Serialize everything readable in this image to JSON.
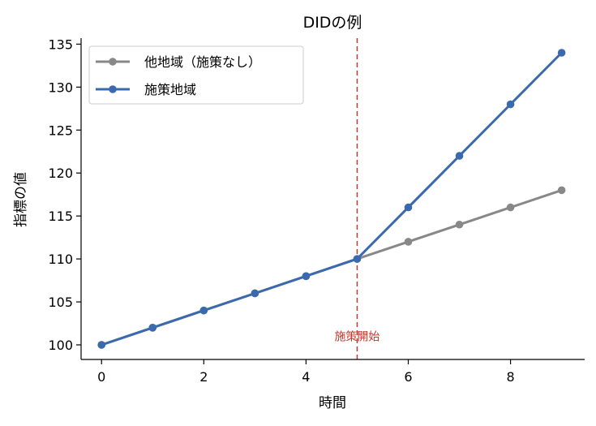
{
  "chart_data": {
    "type": "line",
    "title": "DIDの例",
    "xlabel": "時間",
    "ylabel": "指標の値",
    "xlim": [
      -0.4,
      9.45
    ],
    "ylim": [
      98.3,
      135.7
    ],
    "x_ticks": [
      0,
      2,
      4,
      6,
      8
    ],
    "y_ticks": [
      100,
      105,
      110,
      115,
      120,
      125,
      130,
      135
    ],
    "x": [
      0,
      1,
      2,
      3,
      4,
      5,
      6,
      7,
      8,
      9
    ],
    "series": [
      {
        "name": "他地域（施策なし）",
        "color": "#888888",
        "values": [
          100,
          102,
          104,
          106,
          108,
          110,
          112,
          114,
          116,
          118
        ]
      },
      {
        "name": "施策地域",
        "color": "#3a6aad",
        "values": [
          100,
          102,
          104,
          106,
          108,
          110,
          116,
          122,
          128,
          134
        ]
      }
    ],
    "vline": {
      "x": 5,
      "color": "#c0392b",
      "style": "dashed"
    },
    "annotation": {
      "text": "施策開始",
      "x": 5,
      "y": 101,
      "color": "#c0392b"
    },
    "legend_position": "top-left",
    "grid": false
  }
}
